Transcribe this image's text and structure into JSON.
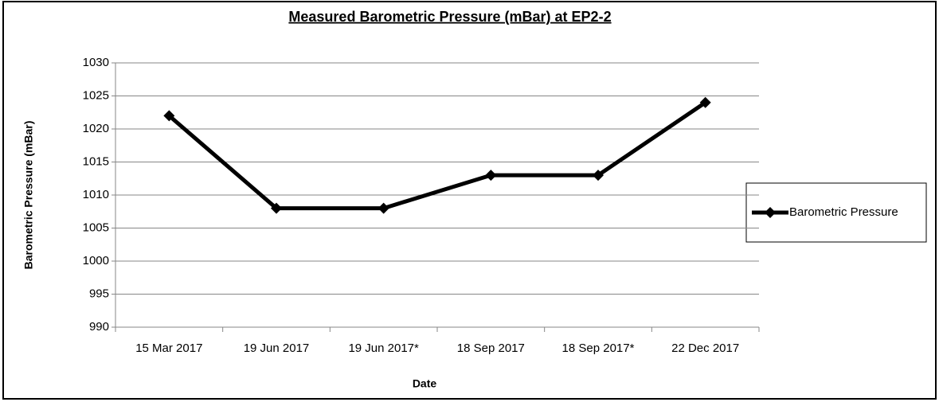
{
  "chart_data": {
    "type": "line",
    "title": "Measured Barometric Pressure (mBar) at EP2-2",
    "x_label": "Date",
    "y_label": "Barometric Pressure (mBar)",
    "categories": [
      "15 Mar 2017",
      "19 Jun 2017",
      "19 Jun 2017*",
      "18 Sep 2017",
      "18 Sep 2017*",
      "22 Dec 2017"
    ],
    "series": [
      {
        "name": "Barometric Pressure",
        "color": "#000000",
        "values": [
          1022,
          1008,
          1008,
          1013,
          1013,
          1024
        ]
      }
    ],
    "ylim": [
      990,
      1030
    ],
    "yticks": [
      990,
      995,
      1000,
      1005,
      1010,
      1015,
      1020,
      1025,
      1030
    ],
    "grid": true,
    "legend": "right"
  }
}
